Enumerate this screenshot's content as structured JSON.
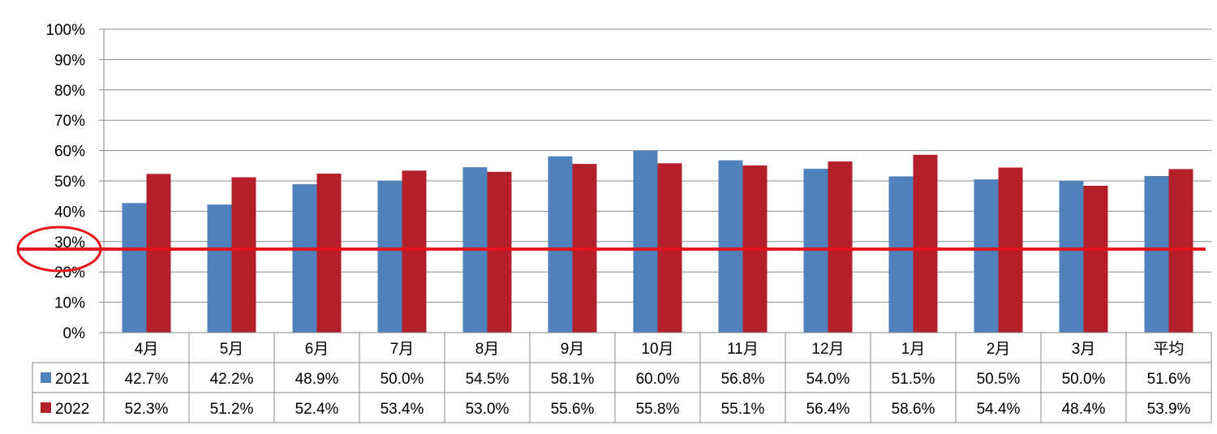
{
  "chart_data": {
    "type": "bar",
    "categories": [
      "4月",
      "5月",
      "6月",
      "7月",
      "8月",
      "9月",
      "10月",
      "11月",
      "12月",
      "1月",
      "2月",
      "3月",
      "平均"
    ],
    "series": [
      {
        "name": "2021",
        "color": "#4f81bd",
        "values": [
          42.7,
          42.2,
          48.9,
          50.0,
          54.5,
          58.1,
          60.0,
          56.8,
          54.0,
          51.5,
          50.5,
          50.0,
          51.6
        ],
        "labels": [
          "42.7%",
          "42.2%",
          "48.9%",
          "50.0%",
          "54.5%",
          "58.1%",
          "60.0%",
          "56.8%",
          "54.0%",
          "51.5%",
          "50.5%",
          "50.0%",
          "51.6%"
        ]
      },
      {
        "name": "2022",
        "color": "#b3202a",
        "values": [
          52.3,
          51.2,
          52.4,
          53.4,
          53.0,
          55.6,
          55.8,
          55.1,
          56.4,
          58.6,
          54.4,
          48.4,
          53.9
        ],
        "labels": [
          "52.3%",
          "51.2%",
          "52.4%",
          "53.4%",
          "53.0%",
          "55.6%",
          "55.8%",
          "55.1%",
          "56.4%",
          "58.6%",
          "54.4%",
          "48.4%",
          "53.9%"
        ]
      }
    ],
    "y_ticks": [
      "0%",
      "10%",
      "20%",
      "30%",
      "40%",
      "50%",
      "60%",
      "70%",
      "80%",
      "90%",
      "100%"
    ],
    "ylim": [
      0,
      100
    ],
    "grid": true,
    "legend": "data-table",
    "reference_line": {
      "value": 27.5,
      "color": "#e8121a"
    },
    "highlight": {
      "shape": "ellipse",
      "around_tick": "30%",
      "color": "#e8121a"
    },
    "title": "",
    "xlabel": "",
    "ylabel": ""
  }
}
